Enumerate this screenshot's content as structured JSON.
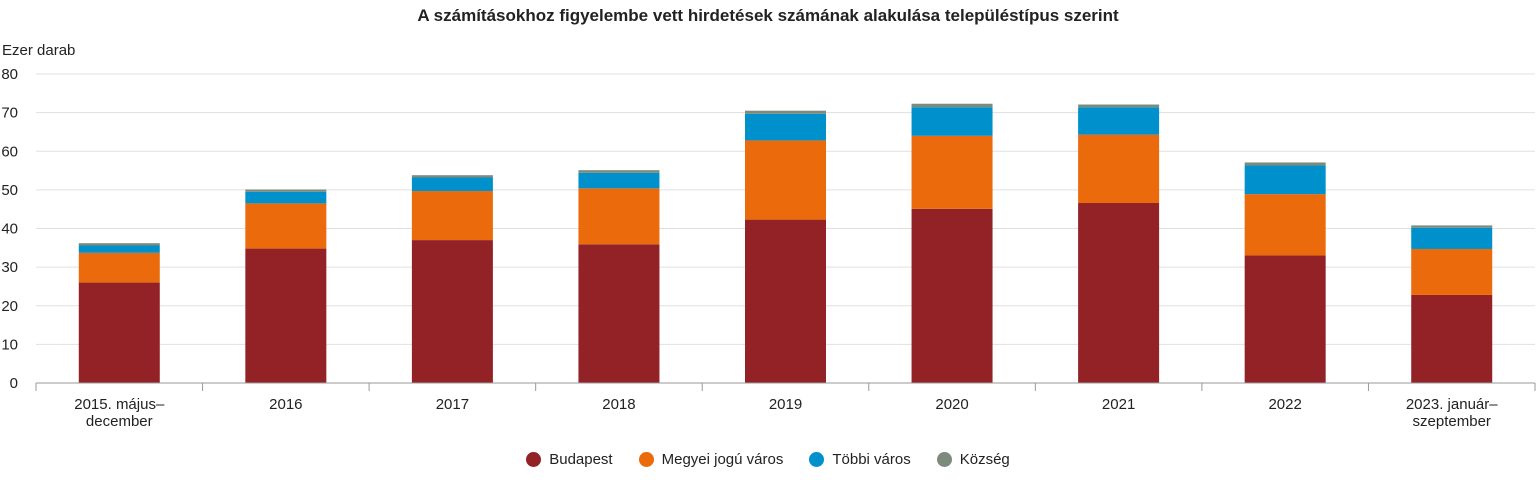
{
  "chart_data": {
    "type": "bar",
    "stacked": true,
    "title": "A számításokhoz figyelembe vett hirdetések számának alakulása településtípus szerint",
    "ylabel": "Ezer darab",
    "xlabel": "",
    "ylim": [
      0,
      80
    ],
    "yticks": [
      0,
      10,
      20,
      30,
      40,
      50,
      60,
      70,
      80
    ],
    "grid": true,
    "legend_position": "bottom",
    "categories": [
      [
        "2015. május–",
        "december"
      ],
      [
        "2016"
      ],
      [
        "2017"
      ],
      [
        "2018"
      ],
      [
        "2019"
      ],
      [
        "2020"
      ],
      [
        "2021"
      ],
      [
        "2022"
      ],
      [
        "2023. január–",
        "szeptember"
      ]
    ],
    "series": [
      {
        "name": "Budapest",
        "color": "#922226",
        "values": [
          26.0,
          34.8,
          37.0,
          35.9,
          42.3,
          45.1,
          46.6,
          33.0,
          22.8
        ]
      },
      {
        "name": "Megyei jogú város",
        "color": "#ea6a0c",
        "values": [
          7.7,
          11.7,
          12.7,
          14.5,
          20.5,
          18.9,
          17.7,
          15.9,
          11.9
        ]
      },
      {
        "name": "Többi város",
        "color": "#0091cd",
        "values": [
          1.9,
          3.0,
          3.5,
          4.0,
          6.9,
          7.4,
          7.1,
          7.4,
          5.5
        ]
      },
      {
        "name": "Község",
        "color": "#7d8b7d",
        "values": [
          0.6,
          0.6,
          0.6,
          0.7,
          0.8,
          0.9,
          0.7,
          0.8,
          0.6
        ]
      }
    ]
  }
}
